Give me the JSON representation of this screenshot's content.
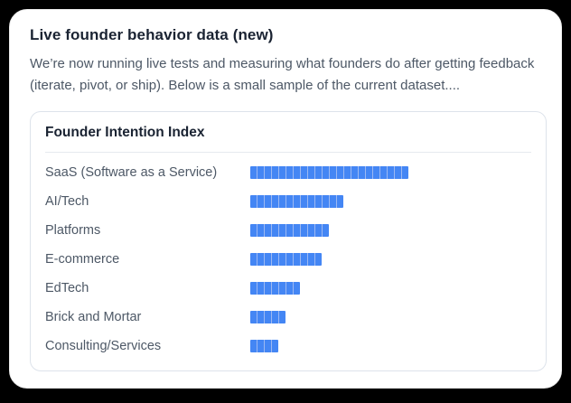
{
  "page": {
    "title": "Live founder behavior data (new)",
    "description": "We’re now running live tests and measuring what founders do after getting feedback (iterate, pivot, or ship). Below is a small sample of the current dataset...."
  },
  "chart_data": {
    "type": "bar",
    "orientation": "horizontal",
    "title": "Founder Intention Index",
    "categories": [
      "SaaS (Software as a Service)",
      "AI/Tech",
      "Platforms",
      "E-commerce",
      "EdTech",
      "Brick and Mortar",
      "Consulting/Services"
    ],
    "values": [
      22,
      13,
      11,
      10,
      7,
      5,
      4
    ],
    "value_unit": "segments",
    "segment_pixel_pitch": 8,
    "bar_color": "#4486f4",
    "bar_gap_color": "#9db9f2",
    "legend": "none",
    "grid": "off"
  }
}
